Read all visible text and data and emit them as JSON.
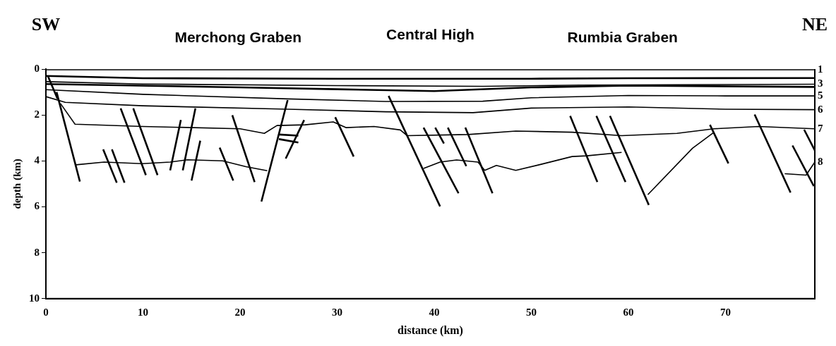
{
  "chart_data": {
    "type": "line",
    "xlabel": "distance (km)",
    "ylabel": "depth (km)",
    "xlim": [
      0,
      79.2
    ],
    "ylim": [
      10,
      0
    ],
    "xticks": [
      0,
      10,
      20,
      30,
      40,
      50,
      60,
      70
    ],
    "yticks": [
      0,
      2,
      4,
      6,
      8,
      10
    ],
    "grid": false,
    "legend": false,
    "marker": "none",
    "annotations": [
      "SW",
      "Merchong Graben",
      "Central High",
      "Rumbia Graben",
      "NE"
    ],
    "series": [
      {
        "name": "1",
        "color": "#000000",
        "x": [
          0,
          79.2
        ],
        "values": [
          0.03,
          0.03
        ]
      },
      {
        "color": "#000000",
        "x": [
          0,
          10,
          30,
          50,
          60,
          79.2
        ],
        "values": [
          0.3,
          0.4,
          0.42,
          0.42,
          0.4,
          0.39
        ]
      },
      {
        "name": "3",
        "color": "#000000",
        "x": [
          0,
          10,
          30,
          45,
          55,
          79.2
        ],
        "values": [
          0.55,
          0.65,
          0.72,
          0.75,
          0.7,
          0.66
        ]
      },
      {
        "color": "#000000",
        "x": [
          0,
          20,
          30,
          40,
          50,
          60,
          79.2
        ],
        "values": [
          0.65,
          0.8,
          0.88,
          0.96,
          0.8,
          0.72,
          0.78
        ]
      },
      {
        "name": "5",
        "color": "#000000",
        "x": [
          0,
          10,
          25,
          35,
          45,
          50,
          60,
          70,
          79.2
        ],
        "values": [
          0.9,
          1.1,
          1.3,
          1.41,
          1.4,
          1.25,
          1.15,
          1.17,
          1.17
        ]
      },
      {
        "name": "6",
        "color": "#000000",
        "x": [
          0,
          2,
          10,
          25,
          35,
          44,
          50,
          60,
          70,
          79.2
        ],
        "values": [
          1.2,
          1.45,
          1.6,
          1.75,
          1.86,
          1.9,
          1.7,
          1.65,
          1.75,
          1.77
        ]
      },
      {
        "name": "7",
        "color": "#000000",
        "x": [
          1.5,
          3,
          10,
          20,
          22.5,
          23.8,
          26.7,
          29.6,
          30.9,
          33.8,
          36.5,
          37.2,
          43.5,
          48.4,
          54.2,
          59.3,
          65,
          68.8,
          73.4,
          79.2
        ],
        "values": [
          1.5,
          2.4,
          2.5,
          2.6,
          2.8,
          2.46,
          2.43,
          2.3,
          2.55,
          2.5,
          2.65,
          2.9,
          2.85,
          2.7,
          2.75,
          2.9,
          2.8,
          2.6,
          2.5,
          2.6
        ]
      },
      {
        "color": "#000000",
        "x": [
          24,
          26
        ],
        "values": [
          2.85,
          2.9
        ]
      },
      {
        "color": "#000000",
        "x": [
          24,
          26
        ],
        "values": [
          3.05,
          3.2
        ]
      },
      {
        "name": "8",
        "color": "#000000",
        "x": [
          3.1,
          6,
          9.9,
          12.8,
          14.6,
          18.2,
          20.6,
          22.8,
          30,
          38.9,
          40.6,
          42.3,
          44.5,
          45.2,
          46.4,
          48.4,
          50.8,
          54.2,
          55.7,
          59.3,
          60.5,
          62,
          66.6,
          68.8,
          72,
          76.1,
          78.3,
          79.2
        ],
        "values": [
          4.17,
          4.05,
          4.12,
          4.05,
          3.95,
          4,
          4.25,
          4.43,
          null,
          4.33,
          4.05,
          3.96,
          4.05,
          4.41,
          4.2,
          4.41,
          4.17,
          3.81,
          3.78,
          3.63,
          null,
          5.47,
          3.45,
          2.76,
          null,
          4.56,
          4.62,
          4.05
        ]
      },
      {
        "color": "#000000",
        "x": [
          0.2,
          1.2
        ],
        "values": [
          0.3,
          1.3
        ]
      },
      {
        "color": "#000000",
        "x": [
          1.1,
          3.5
        ],
        "values": [
          1,
          4.9
        ]
      },
      {
        "color": "#000000",
        "x": [
          5.9,
          7.3
        ],
        "values": [
          3.5,
          4.95
        ]
      },
      {
        "color": "#000000",
        "x": [
          6.8,
          8.1
        ],
        "values": [
          3.5,
          4.95
        ]
      },
      {
        "color": "#000000",
        "x": [
          7.7,
          10.3
        ],
        "values": [
          1.71,
          4.62
        ]
      },
      {
        "color": "#000000",
        "x": [
          9,
          11.5
        ],
        "values": [
          1.71,
          4.62
        ]
      },
      {
        "color": "#000000",
        "x": [
          13.9,
          12.8
        ],
        "values": [
          2.22,
          4.41
        ]
      },
      {
        "color": "#000000",
        "x": [
          15.4,
          14.1
        ],
        "values": [
          1.71,
          4.41
        ]
      },
      {
        "color": "#000000",
        "x": [
          15.9,
          15
        ],
        "values": [
          3.12,
          4.86
        ]
      },
      {
        "color": "#000000",
        "x": [
          17.9,
          19.3
        ],
        "values": [
          3.42,
          4.86
        ]
      },
      {
        "color": "#000000",
        "x": [
          19.2,
          21.5
        ],
        "values": [
          2.01,
          4.92
        ]
      },
      {
        "color": "#000000",
        "x": [
          24.9,
          22.2
        ],
        "values": [
          1.35,
          5.77
        ]
      },
      {
        "color": "#000000",
        "x": [
          26.6,
          24.7
        ],
        "values": [
          2.22,
          3.9
        ]
      },
      {
        "color": "#000000",
        "x": [
          29.8,
          31.7
        ],
        "values": [
          2.1,
          3.81
        ]
      },
      {
        "color": "#000000",
        "x": [
          35.3,
          40.6
        ],
        "values": [
          1.17,
          5.98
        ]
      },
      {
        "color": "#000000",
        "x": [
          38.9,
          42.5
        ],
        "values": [
          2.55,
          5.41
        ]
      },
      {
        "color": "#000000",
        "x": [
          40.1,
          41
        ],
        "values": [
          2.55,
          3.24
        ]
      },
      {
        "color": "#000000",
        "x": [
          41.4,
          43.3
        ],
        "values": [
          2.55,
          4.23
        ]
      },
      {
        "color": "#000000",
        "x": [
          43.2,
          46
        ],
        "values": [
          2.55,
          5.41
        ]
      },
      {
        "color": "#000000",
        "x": [
          54,
          56.8
        ],
        "values": [
          2.04,
          4.92
        ]
      },
      {
        "color": "#000000",
        "x": [
          56.7,
          59.7
        ],
        "values": [
          2.04,
          4.92
        ]
      },
      {
        "color": "#000000",
        "x": [
          58.1,
          62.1
        ],
        "values": [
          2.04,
          5.92
        ]
      },
      {
        "color": "#000000",
        "x": [
          68.4,
          70.3
        ],
        "values": [
          2.43,
          4.11
        ]
      },
      {
        "color": "#000000",
        "x": [
          73,
          76.7
        ],
        "values": [
          1.98,
          5.38
        ]
      },
      {
        "color": "#000000",
        "x": [
          76.9,
          79.1
        ],
        "values": [
          3.33,
          5.1
        ]
      },
      {
        "color": "#000000",
        "x": [
          78.1,
          79.2
        ],
        "values": [
          2.64,
          3.54
        ]
      }
    ]
  }
}
